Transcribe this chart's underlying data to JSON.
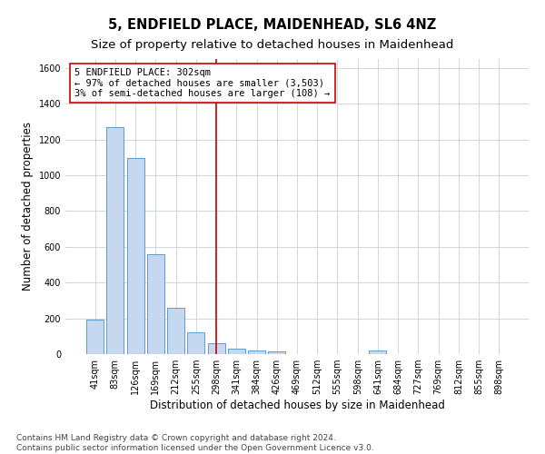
{
  "title": "5, ENDFIELD PLACE, MAIDENHEAD, SL6 4NZ",
  "subtitle": "Size of property relative to detached houses in Maidenhead",
  "xlabel": "Distribution of detached houses by size in Maidenhead",
  "ylabel": "Number of detached properties",
  "categories": [
    "41sqm",
    "83sqm",
    "126sqm",
    "169sqm",
    "212sqm",
    "255sqm",
    "298sqm",
    "341sqm",
    "384sqm",
    "426sqm",
    "469sqm",
    "512sqm",
    "555sqm",
    "598sqm",
    "641sqm",
    "684sqm",
    "727sqm",
    "769sqm",
    "812sqm",
    "855sqm",
    "898sqm"
  ],
  "values": [
    195,
    1270,
    1095,
    557,
    260,
    120,
    60,
    32,
    22,
    15,
    0,
    0,
    0,
    0,
    22,
    0,
    0,
    0,
    0,
    0,
    0
  ],
  "bar_color": "#c5d8f0",
  "bar_edge_color": "#5b9bd5",
  "vline_x_index": 6,
  "vline_color": "#cc0000",
  "annotation_line1": "5 ENDFIELD PLACE: 302sqm",
  "annotation_line2": "← 97% of detached houses are smaller (3,503)",
  "annotation_line3": "3% of semi-detached houses are larger (108) →",
  "annotation_box_color": "#ffffff",
  "annotation_box_edge_color": "#cc0000",
  "ylim": [
    0,
    1650
  ],
  "yticks": [
    0,
    200,
    400,
    600,
    800,
    1000,
    1200,
    1400,
    1600
  ],
  "footer_line1": "Contains HM Land Registry data © Crown copyright and database right 2024.",
  "footer_line2": "Contains public sector information licensed under the Open Government Licence v3.0.",
  "background_color": "#ffffff",
  "grid_color": "#c8d0dc",
  "title_fontsize": 10.5,
  "subtitle_fontsize": 9.5,
  "tick_fontsize": 7,
  "ylabel_fontsize": 8.5,
  "xlabel_fontsize": 8.5,
  "annotation_fontsize": 7.5,
  "footer_fontsize": 6.5
}
